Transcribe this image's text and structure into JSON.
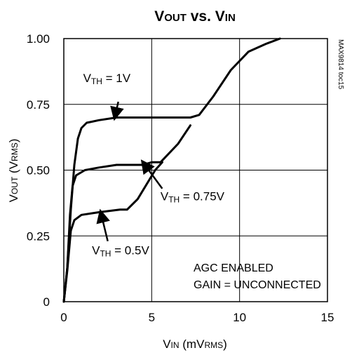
{
  "chart_data": {
    "type": "line",
    "title": {
      "main": "V",
      "main_small": "OUT",
      "mid": " vs. ",
      "end": "V",
      "end_small": "IN"
    },
    "xlabel": {
      "main": "V",
      "sub": "IN",
      "rest": " (mV",
      "rest_sub": "RMS",
      "close": ")"
    },
    "ylabel": {
      "main": "V",
      "sub": "OUT",
      "rest": " (V",
      "rest_sub": "RMS",
      "close": ")"
    },
    "xlim": [
      0,
      15
    ],
    "ylim": [
      0,
      1.0
    ],
    "x_ticks": [
      0,
      5,
      10,
      15
    ],
    "x_tick_labels": [
      "0",
      "5",
      "10",
      "15"
    ],
    "y_ticks": [
      0,
      0.25,
      0.5,
      0.75,
      1.0
    ],
    "y_tick_labels": [
      "0",
      "0.25",
      "0.50",
      "0.75",
      "1.00"
    ],
    "grid": true,
    "side_note": "MAX9814 toc15",
    "info_lines": [
      "AGC ENABLED",
      "GAIN = UNCONNECTED"
    ],
    "series": [
      {
        "name": {
          "v": "V",
          "sub": "TH",
          "rest": " = 1V"
        },
        "points": [
          [
            0,
            0
          ],
          [
            0.2,
            0.13
          ],
          [
            0.4,
            0.35
          ],
          [
            0.6,
            0.52
          ],
          [
            0.8,
            0.62
          ],
          [
            1.0,
            0.66
          ],
          [
            1.3,
            0.68
          ],
          [
            2.0,
            0.69
          ],
          [
            3.0,
            0.7
          ],
          [
            5.0,
            0.7
          ],
          [
            7.2,
            0.7
          ],
          [
            7.7,
            0.71
          ],
          [
            8.5,
            0.78
          ],
          [
            9.5,
            0.88
          ],
          [
            10.5,
            0.95
          ],
          [
            11.5,
            0.98
          ],
          [
            12.3,
            1.0
          ]
        ]
      },
      {
        "name": {
          "v": "V",
          "sub": "TH",
          "rest": " = 0.75V"
        },
        "points": [
          [
            0,
            0
          ],
          [
            0.2,
            0.13
          ],
          [
            0.35,
            0.33
          ],
          [
            0.5,
            0.44
          ],
          [
            0.7,
            0.48
          ],
          [
            1.2,
            0.5
          ],
          [
            2.0,
            0.51
          ],
          [
            3.0,
            0.52
          ],
          [
            4.5,
            0.52
          ],
          [
            5.0,
            0.53
          ],
          [
            5.5,
            0.53
          ],
          [
            6.5,
            0.6
          ],
          [
            7.2,
            0.67
          ]
        ]
      },
      {
        "name": {
          "v": "V",
          "sub": "TH",
          "rest": " = 0.5V"
        },
        "points": [
          [
            0,
            0
          ],
          [
            0.2,
            0.12
          ],
          [
            0.4,
            0.27
          ],
          [
            0.6,
            0.31
          ],
          [
            1.0,
            0.33
          ],
          [
            2.0,
            0.34
          ],
          [
            3.2,
            0.35
          ],
          [
            3.6,
            0.35
          ],
          [
            4.2,
            0.39
          ],
          [
            5.2,
            0.5
          ],
          [
            5.6,
            0.53
          ]
        ]
      }
    ],
    "annotations": [
      {
        "series": 0,
        "label_anchor": [
          1.1,
          0.835
        ],
        "arrow_from": [
          3.1,
          0.76
        ],
        "arrow_to": [
          2.9,
          0.7
        ]
      },
      {
        "series": 1,
        "label_anchor": [
          5.5,
          0.385
        ],
        "arrow_from": [
          5.6,
          0.43
        ],
        "arrow_to": [
          4.5,
          0.53
        ]
      },
      {
        "series": 2,
        "label_anchor": [
          1.6,
          0.18
        ],
        "arrow_from": [
          2.5,
          0.23
        ],
        "arrow_to": [
          2.1,
          0.34
        ]
      }
    ]
  }
}
